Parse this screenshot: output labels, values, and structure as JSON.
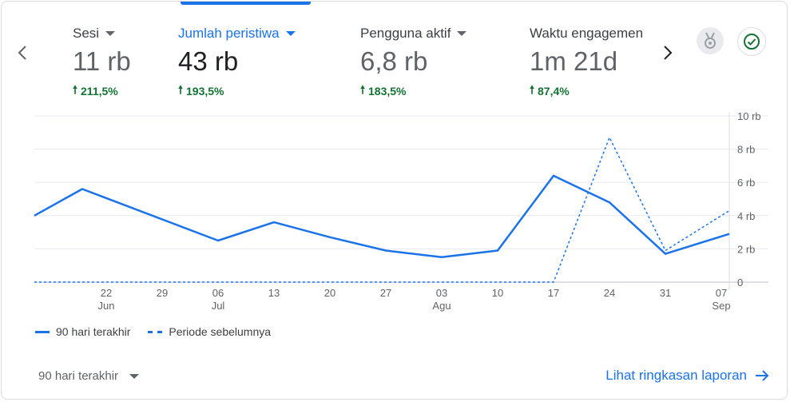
{
  "metrics": [
    {
      "label": "Sesi",
      "value": "11 rb",
      "delta": "211,5%"
    },
    {
      "label": "Jumlah peristiwa",
      "value": "43 rb",
      "delta": "193,5%"
    },
    {
      "label": "Pengguna aktif",
      "value": "6,8 rb",
      "delta": "183,5%"
    },
    {
      "label": "Waktu engagemen",
      "value": "1m 21d",
      "delta": "87,4%"
    }
  ],
  "selected_metric": 1,
  "icons": {
    "prev": "chevron-left-icon",
    "next": "chevron-right-icon",
    "insights": "insights-badge-icon",
    "check": "check-circle-icon"
  },
  "colors": {
    "accent": "#1a73e8",
    "positive": "#137333"
  },
  "chart_data": {
    "type": "line",
    "title": "",
    "xlabel": "",
    "ylabel": "",
    "ylim": [
      0,
      10000
    ],
    "y_ticks": [
      0,
      2000,
      4000,
      6000,
      8000,
      10000
    ],
    "y_tick_labels": [
      "0",
      "2 rb",
      "4 rb",
      "6 rb",
      "8 rb",
      "10 rb"
    ],
    "x_start": "2024-06-13",
    "x_end": "2024-09-08",
    "x_ticks": [
      {
        "date": "2024-06-22",
        "day": "22",
        "month": "Jun"
      },
      {
        "date": "2024-06-29",
        "day": "29",
        "month": ""
      },
      {
        "date": "2024-07-06",
        "day": "06",
        "month": "Jul"
      },
      {
        "date": "2024-07-13",
        "day": "13",
        "month": ""
      },
      {
        "date": "2024-07-20",
        "day": "20",
        "month": ""
      },
      {
        "date": "2024-07-27",
        "day": "27",
        "month": ""
      },
      {
        "date": "2024-08-03",
        "day": "03",
        "month": "Agu"
      },
      {
        "date": "2024-08-10",
        "day": "10",
        "month": ""
      },
      {
        "date": "2024-08-17",
        "day": "17",
        "month": ""
      },
      {
        "date": "2024-08-24",
        "day": "24",
        "month": ""
      },
      {
        "date": "2024-08-31",
        "day": "31",
        "month": ""
      },
      {
        "date": "2024-09-07",
        "day": "07",
        "month": "Sep"
      }
    ],
    "grid": true,
    "legend_position": "bottom-left",
    "series": [
      {
        "name": "90 hari terakhir",
        "style": "solid",
        "points": [
          {
            "date": "2024-06-13",
            "value": 4000
          },
          {
            "date": "2024-06-19",
            "value": 5600
          },
          {
            "date": "2024-07-06",
            "value": 2500
          },
          {
            "date": "2024-07-13",
            "value": 3600
          },
          {
            "date": "2024-07-20",
            "value": 2700
          },
          {
            "date": "2024-07-27",
            "value": 1900
          },
          {
            "date": "2024-08-03",
            "value": 1500
          },
          {
            "date": "2024-08-10",
            "value": 1900
          },
          {
            "date": "2024-08-17",
            "value": 6400
          },
          {
            "date": "2024-08-24",
            "value": 4800
          },
          {
            "date": "2024-08-31",
            "value": 1700
          },
          {
            "date": "2024-09-08",
            "value": 2900
          }
        ]
      },
      {
        "name": "Periode sebelumnya",
        "style": "dashed",
        "points": [
          {
            "date": "2024-06-13",
            "value": 0
          },
          {
            "date": "2024-08-17",
            "value": 0
          },
          {
            "date": "2024-08-24",
            "value": 8700
          },
          {
            "date": "2024-08-31",
            "value": 1900
          },
          {
            "date": "2024-09-08",
            "value": 4300
          }
        ]
      }
    ]
  },
  "legend": {
    "current": "90 hari terakhir",
    "previous": "Periode sebelumnya"
  },
  "footer": {
    "range_label": "90 hari terakhir",
    "report_link": "Lihat ringkasan laporan"
  }
}
